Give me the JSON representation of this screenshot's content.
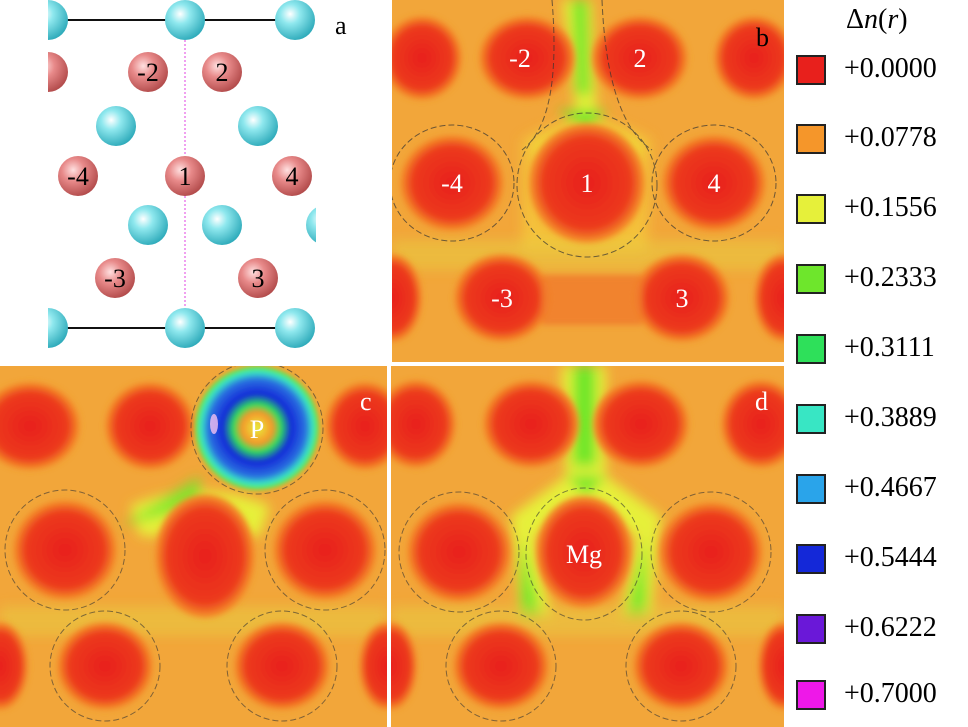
{
  "panels": {
    "a": {
      "letter": "a",
      "site_labels": [
        "-2",
        "2",
        "-4",
        "1",
        "4",
        "-3",
        "3"
      ]
    },
    "b": {
      "letter": "b",
      "site_labels": [
        "-2",
        "2",
        "-4",
        "1",
        "4",
        "-3",
        "3"
      ]
    },
    "c": {
      "letter": "c",
      "dopant_label": "P"
    },
    "d": {
      "letter": "d",
      "dopant_label": "Mg"
    }
  },
  "legend": {
    "title_symbol": "Δ",
    "title_var": "n",
    "title_arg_open": "(",
    "title_arg": "r",
    "title_arg_close": ")",
    "entries": [
      {
        "label": "+0.0000",
        "color": "#e8201c"
      },
      {
        "label": "+0.0778",
        "color": "#f5962a"
      },
      {
        "label": "+0.1556",
        "color": "#e6f03a"
      },
      {
        "label": "+0.2333",
        "color": "#6ee62c"
      },
      {
        "label": "+0.3111",
        "color": "#2ee05a"
      },
      {
        "label": "+0.3889",
        "color": "#38e6c4"
      },
      {
        "label": "+0.4667",
        "color": "#2aa4ea"
      },
      {
        "label": "+0.5444",
        "color": "#1428d8"
      },
      {
        "label": "+0.6222",
        "color": "#6a18d8"
      },
      {
        "label": "+0.7000",
        "color": "#ee18e8"
      }
    ]
  },
  "colors": {
    "cation": "#e07a7a",
    "anion": "#5fd8e0",
    "background_map": "#f0a040"
  }
}
